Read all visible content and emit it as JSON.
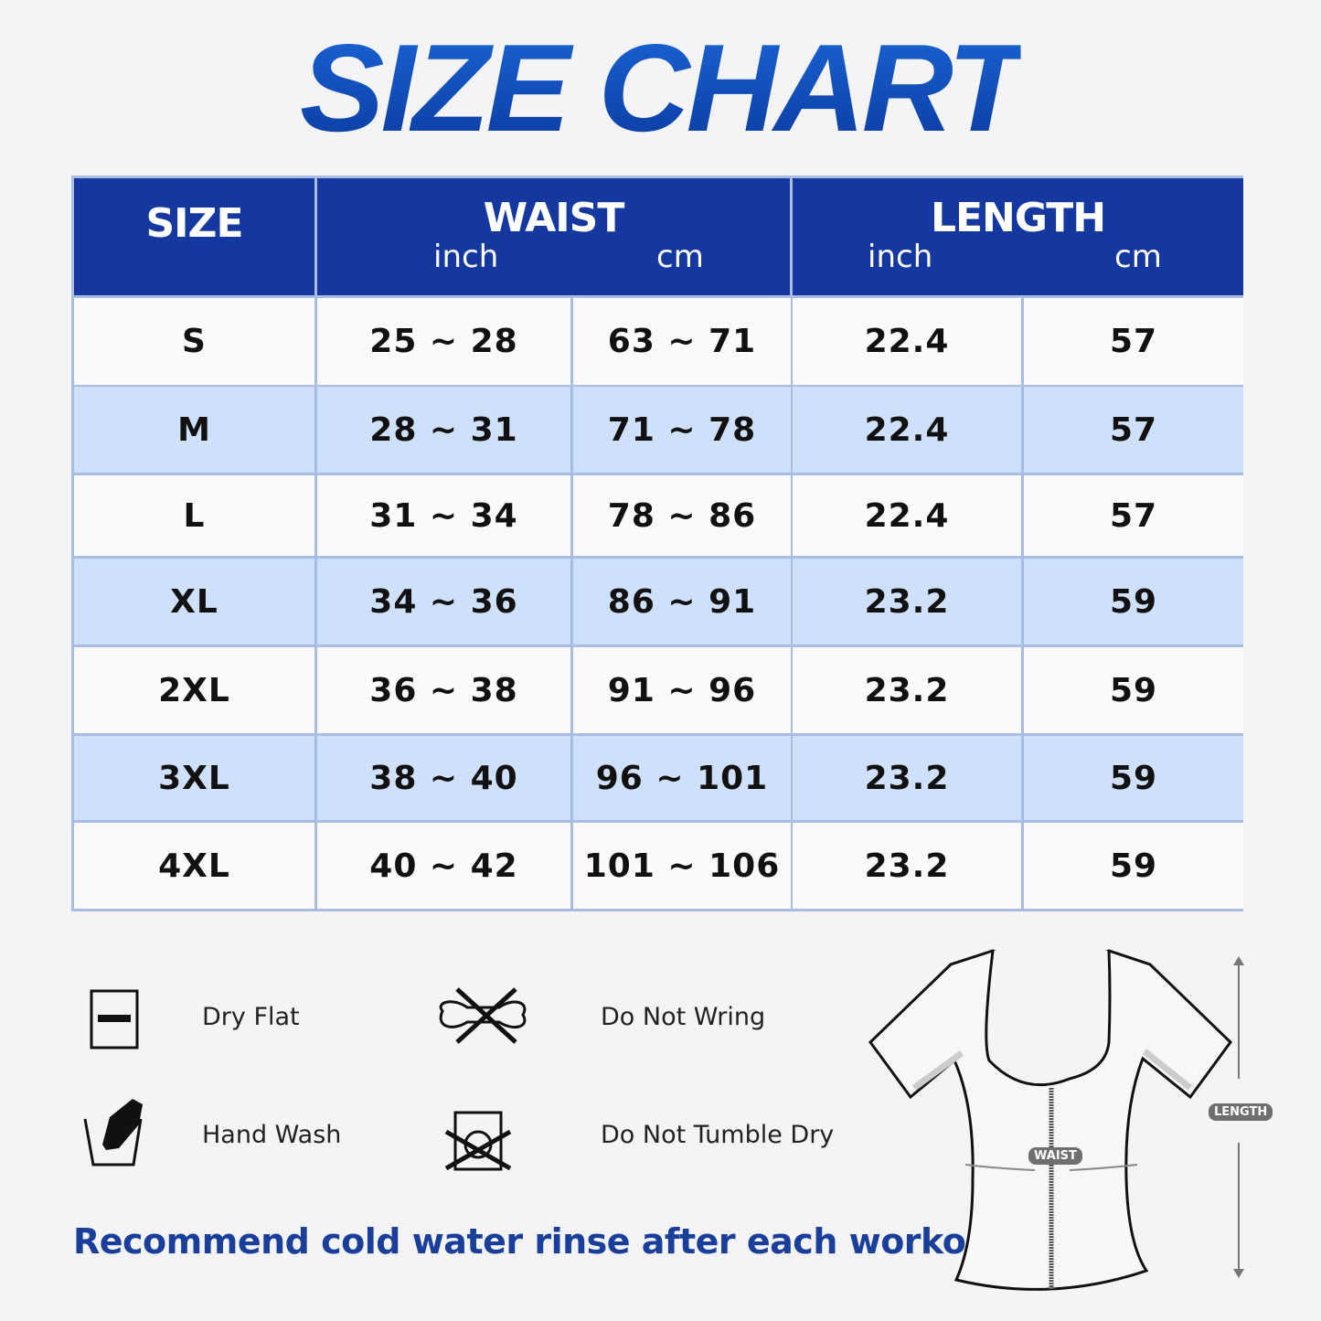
{
  "title": "SIZE CHART",
  "table": {
    "headers": {
      "size": "SIZE",
      "waist": "WAIST",
      "length": "LENGTH",
      "inch": "inch",
      "cm": "cm"
    },
    "rows": [
      {
        "size": "S",
        "waist_inch": "25 ~ 28",
        "waist_cm": "63 ~ 71",
        "length_inch": "22.4",
        "length_cm": "57"
      },
      {
        "size": "M",
        "waist_inch": "28 ~ 31",
        "waist_cm": "71 ~ 78",
        "length_inch": "22.4",
        "length_cm": "57"
      },
      {
        "size": "L",
        "waist_inch": "31 ~ 34",
        "waist_cm": "78 ~ 86",
        "length_inch": "22.4",
        "length_cm": "57"
      },
      {
        "size": "XL",
        "waist_inch": "34 ~ 36",
        "waist_cm": "86 ~ 91",
        "length_inch": "23.2",
        "length_cm": "59"
      },
      {
        "size": "2XL",
        "waist_inch": "36 ~ 38",
        "waist_cm": "91 ~ 96",
        "length_inch": "23.2",
        "length_cm": "59"
      },
      {
        "size": "3XL",
        "waist_inch": "38 ~ 40",
        "waist_cm": "96 ~ 101",
        "length_inch": "23.2",
        "length_cm": "59"
      },
      {
        "size": "4XL",
        "waist_inch": "40 ~ 42",
        "waist_cm": "101 ~ 106",
        "length_inch": "23.2",
        "length_cm": "59"
      }
    ]
  },
  "care": [
    {
      "icon": "dry-flat-icon",
      "label": "Dry Flat"
    },
    {
      "icon": "do-not-wring-icon",
      "label": "Do Not Wring"
    },
    {
      "icon": "hand-wash-icon",
      "label": "Hand Wash"
    },
    {
      "icon": "do-not-tumble-dry-icon",
      "label": "Do Not Tumble Dry"
    }
  ],
  "note": "Recommend cold water rinse after each workout.",
  "diagram": {
    "waist_tag": "WAIST",
    "length_tag": "LENGTH"
  },
  "colors": {
    "header": "#1438a0",
    "row_alt": "#cfe0fa",
    "row": "#fafafa",
    "accent": "#1a3f9a"
  }
}
